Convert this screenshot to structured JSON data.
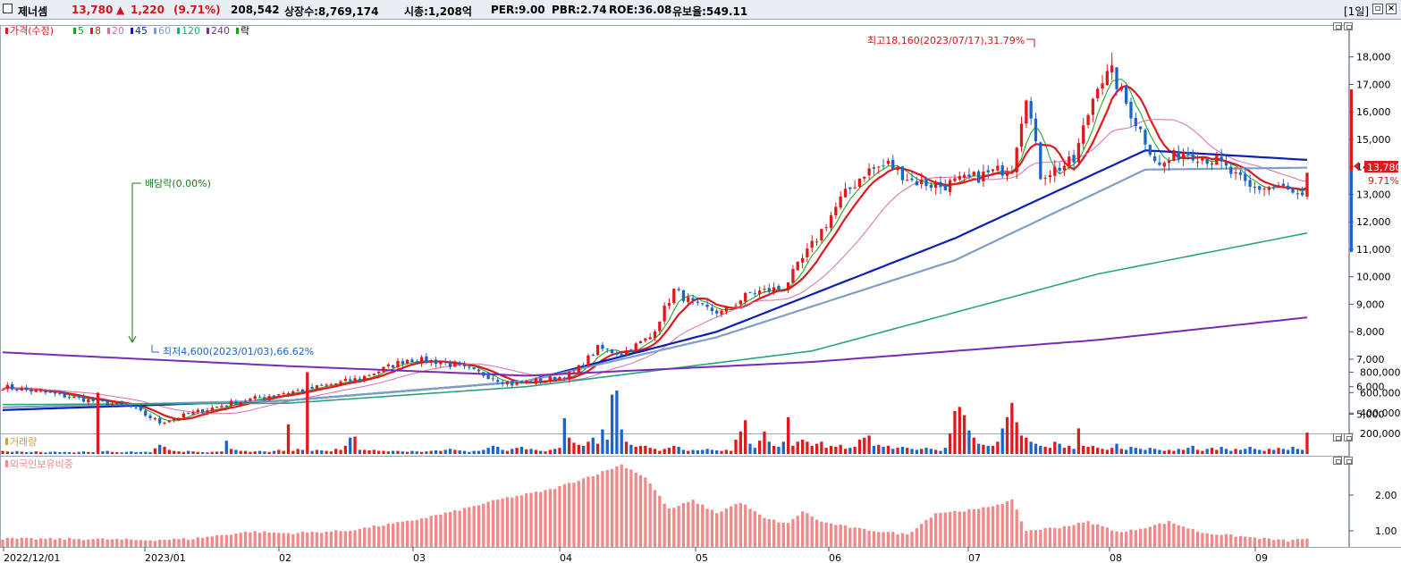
{
  "header": {
    "name": "제너셈",
    "price": "13,780",
    "arrow": "▲",
    "change": "1,220",
    "change_pct": "(9.71%)",
    "volume": "208,542",
    "shares": "상장수:8,769,174",
    "mcap": "시총:1,208억",
    "per": "PER:9.00",
    "pbr": "PBR:2.74",
    "roe": "ROE:36.08",
    "reserve": "유보율:549.11",
    "period": "[1일]"
  },
  "legend": {
    "price_label": "가격(수정)",
    "ma_labels": [
      "5",
      "8",
      "20",
      "45",
      "60",
      "120",
      "240"
    ],
    "fall_label": "락",
    "volume_label": "거래량",
    "foreign_label": "외국인보유비중"
  },
  "annotations": {
    "high": "최고18,160(2023/07/17),31.79%",
    "low": "최저4,600(2023/01/03),66.62%",
    "dividend": "배당락(0.00%)",
    "last_price": "13,780",
    "last_pct": "9.71%"
  },
  "colors": {
    "up": "#e0191d",
    "down": "#1b64c8",
    "ma5": "#15a315",
    "ma8": "#e0191d",
    "ma20": "#d86bb0",
    "ma45": "#0b1fb5",
    "ma60": "#7f9ec4",
    "ma120": "#2aa57a",
    "ma240": "#7a2ab5",
    "foreign": "#f08a8a"
  },
  "chart_data": [
    {
      "type": "candlestick",
      "title": "가격(수정)",
      "x_labels": [
        "2022/12/01",
        "2023/01",
        "02",
        "03",
        "04",
        "05",
        "06",
        "07",
        "08",
        "09"
      ],
      "y_ticks": [
        5000,
        6000,
        7000,
        8000,
        9000,
        10000,
        11000,
        12000,
        13000,
        14000,
        15000,
        16000,
        17000,
        18000
      ],
      "ylim": [
        4300,
        18900
      ],
      "close_anchors": [
        [
          0,
          6000
        ],
        [
          10,
          5750
        ],
        [
          20,
          5450
        ],
        [
          27,
          5250
        ],
        [
          33,
          4700
        ],
        [
          40,
          5050
        ],
        [
          48,
          5400
        ],
        [
          58,
          5750
        ],
        [
          64,
          5900
        ],
        [
          75,
          6300
        ],
        [
          85,
          7000
        ],
        [
          92,
          6900
        ],
        [
          100,
          6500
        ],
        [
          107,
          6100
        ],
        [
          116,
          6300
        ],
        [
          120,
          6500
        ],
        [
          125,
          7400
        ],
        [
          130,
          7200
        ],
        [
          136,
          7800
        ],
        [
          141,
          9500
        ],
        [
          146,
          8900
        ],
        [
          151,
          8700
        ],
        [
          157,
          9400
        ],
        [
          164,
          9600
        ],
        [
          171,
          11400
        ],
        [
          176,
          12800
        ],
        [
          181,
          13800
        ],
        [
          186,
          14100
        ],
        [
          191,
          13500
        ],
        [
          197,
          13300
        ],
        [
          204,
          13600
        ],
        [
          212,
          14000
        ],
        [
          215,
          16700
        ],
        [
          218,
          13700
        ],
        [
          225,
          14200
        ],
        [
          230,
          17100
        ],
        [
          233,
          17400
        ],
        [
          236,
          16300
        ],
        [
          243,
          14000
        ],
        [
          248,
          14600
        ],
        [
          255,
          14200
        ],
        [
          262,
          13200
        ],
        [
          268,
          13300
        ],
        [
          275,
          12600
        ],
        [
          281,
          13100
        ],
        [
          288,
          12100
        ],
        [
          289,
          13780
        ]
      ],
      "moving_averages": [
        "5",
        "8",
        "20",
        "45",
        "60",
        "120",
        "240"
      ],
      "high": {
        "index": 233,
        "value": 18160
      },
      "low": {
        "index": 33,
        "value": 4600
      }
    },
    {
      "type": "bar",
      "title": "거래량",
      "y_ticks": [
        200000,
        400000,
        600000,
        800000
      ],
      "ylim": [
        0,
        900000
      ],
      "values": [
        30000,
        25000,
        20000,
        28000,
        22000,
        18000,
        20000,
        25000,
        18000,
        15000,
        20000,
        22000,
        18000,
        20000,
        18000,
        15000,
        20000,
        25000,
        20000,
        18000,
        600000,
        25000,
        30000,
        20000,
        18000,
        15000,
        20000,
        25000,
        18000,
        20000,
        22000,
        18000,
        55000,
        90000,
        70000,
        40000,
        30000,
        25000,
        20000,
        30000,
        25000,
        20000,
        18000,
        15000,
        20000,
        22000,
        25000,
        130000,
        50000,
        40000,
        30000,
        30000,
        20000,
        25000,
        30000,
        25000,
        20000,
        30000,
        40000,
        30000,
        290000,
        30000,
        50000,
        40000,
        800000,
        30000,
        40000,
        35000,
        30000,
        25000,
        50000,
        40000,
        80000,
        160000,
        170000,
        40000,
        40000,
        35000,
        40000,
        30000,
        30000,
        25000,
        30000,
        30000,
        25000,
        20000,
        30000,
        25000,
        20000,
        25000,
        30000,
        35000,
        30000,
        40000,
        50000,
        40000,
        35000,
        30000,
        20000,
        30000,
        30000,
        40000,
        60000,
        80000,
        70000,
        40000,
        30000,
        50000,
        60000,
        70000,
        45000,
        50000,
        40000,
        30000,
        25000,
        40000,
        50000,
        60000,
        350000,
        160000,
        110000,
        90000,
        80000,
        120000,
        160000,
        100000,
        240000,
        140000,
        580000,
        620000,
        240000,
        120000,
        90000,
        70000,
        80000,
        80000,
        60000,
        50000,
        30000,
        50000,
        60000,
        80000,
        70000,
        40000,
        30000,
        40000,
        35000,
        40000,
        50000,
        40000,
        35000,
        30000,
        40000,
        30000,
        140000,
        220000,
        330000,
        100000,
        60000,
        130000,
        220000,
        120000,
        80000,
        70000,
        120000,
        360000,
        80000,
        120000,
        140000,
        120000,
        80000,
        100000,
        120000,
        60000,
        80000,
        70000,
        90000,
        50000,
        60000,
        70000,
        140000,
        160000,
        180000,
        80000,
        90000,
        70000,
        80000,
        50000,
        60000,
        70000,
        60000,
        50000,
        40000,
        50000,
        60000,
        50000,
        40000,
        30000,
        60000,
        200000,
        420000,
        460000,
        380000,
        230000,
        160000,
        100000,
        90000,
        80000,
        80000,
        120000,
        250000,
        360000,
        500000,
        310000,
        180000,
        160000,
        120000,
        100000,
        80000,
        70000,
        60000,
        120000,
        100000,
        60000,
        80000,
        50000,
        250000,
        80000,
        70000,
        80000,
        60000,
        50000,
        40000,
        60000,
        100000,
        50000,
        40000,
        70000,
        60000,
        50000,
        40000,
        60000,
        50000,
        40000,
        30000,
        40000,
        30000,
        50000,
        40000,
        60000,
        80000,
        40000,
        30000,
        50000,
        60000,
        40000,
        70000,
        50000,
        30000,
        50000,
        40000,
        50000,
        70000,
        50000,
        40000,
        30000,
        50000,
        40000,
        60000,
        50000,
        40000,
        70000,
        50000,
        40000,
        208542
      ]
    },
    {
      "type": "bar",
      "title": "외국인보유비중",
      "y_ticks": [
        1.0,
        2.0
      ],
      "ylim": [
        0.55,
        2.9
      ],
      "value_anchors": [
        [
          0,
          0.78
        ],
        [
          20,
          0.77
        ],
        [
          30,
          0.74
        ],
        [
          40,
          0.78
        ],
        [
          52,
          0.98
        ],
        [
          60,
          0.93
        ],
        [
          72,
          1.0
        ],
        [
          85,
          1.26
        ],
        [
          95,
          1.55
        ],
        [
          105,
          1.9
        ],
        [
          115,
          2.15
        ],
        [
          125,
          2.6
        ],
        [
          130,
          2.85
        ],
        [
          135,
          2.5
        ],
        [
          140,
          1.6
        ],
        [
          145,
          1.85
        ],
        [
          150,
          1.5
        ],
        [
          155,
          1.8
        ],
        [
          160,
          1.35
        ],
        [
          165,
          1.2
        ],
        [
          168,
          1.55
        ],
        [
          172,
          1.25
        ],
        [
          180,
          1.05
        ],
        [
          190,
          0.9
        ],
        [
          196,
          1.5
        ],
        [
          205,
          1.6
        ],
        [
          212,
          1.85
        ],
        [
          215,
          1.0
        ],
        [
          222,
          1.1
        ],
        [
          228,
          1.25
        ],
        [
          235,
          0.95
        ],
        [
          245,
          1.25
        ],
        [
          252,
          0.95
        ],
        [
          262,
          0.82
        ],
        [
          270,
          0.72
        ],
        [
          278,
          0.86
        ],
        [
          282,
          1.0
        ],
        [
          289,
          0.98
        ]
      ]
    }
  ]
}
